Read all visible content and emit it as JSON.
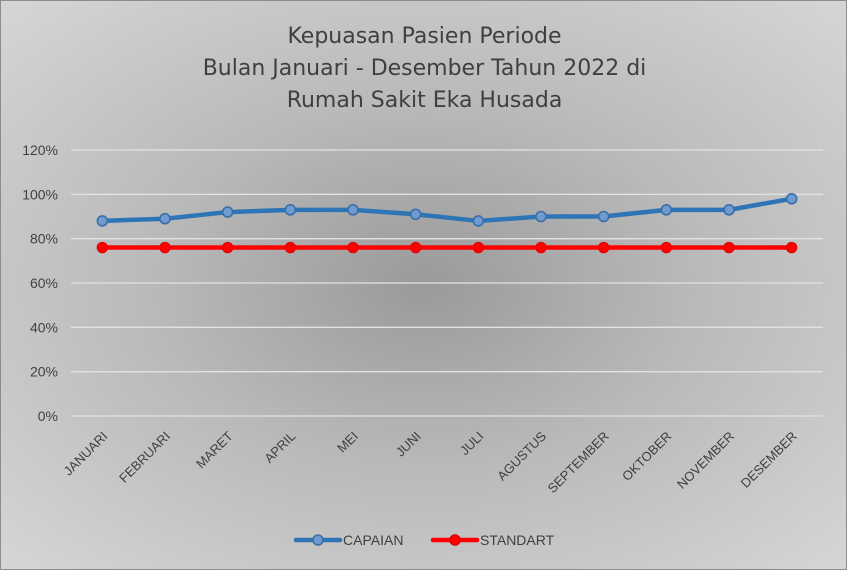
{
  "chart_data": {
    "type": "line",
    "title_lines": [
      "Kepuasan Pasien Periode",
      "Bulan Januari - Desember Tahun 2022 di",
      "Rumah Sakit Eka Husada"
    ],
    "categories": [
      "JANUARI",
      "FEBRUARI",
      "MARET",
      "APRIL",
      "MEI",
      "JUNI",
      "JULI",
      "AGUSTUS",
      "SEPTEMBER",
      "OKTOBER",
      "NOVEMBER",
      "DESEMBER"
    ],
    "ylim": [
      0,
      1.2
    ],
    "yticks": [
      {
        "value": 0,
        "label": "0%"
      },
      {
        "value": 0.2,
        "label": "20%"
      },
      {
        "value": 0.4,
        "label": "40%"
      },
      {
        "value": 0.6,
        "label": "60%"
      },
      {
        "value": 0.8,
        "label": "80%"
      },
      {
        "value": 1.0,
        "label": "100%"
      },
      {
        "value": 1.2,
        "label": "120%"
      }
    ],
    "grid": true,
    "legend_position": "bottom",
    "series": [
      {
        "name": "CAPAIAN",
        "color": "#2e75b6",
        "values": [
          0.88,
          0.89,
          0.92,
          0.93,
          0.93,
          0.91,
          0.88,
          0.9,
          0.9,
          0.93,
          0.93,
          0.98
        ]
      },
      {
        "name": "STANDART",
        "color": "#ff0000",
        "values": [
          0.76,
          0.76,
          0.76,
          0.76,
          0.76,
          0.76,
          0.76,
          0.76,
          0.76,
          0.76,
          0.76,
          0.76
        ]
      }
    ]
  }
}
